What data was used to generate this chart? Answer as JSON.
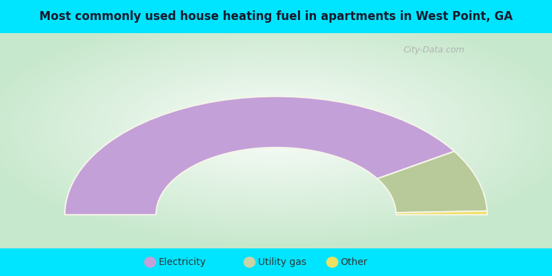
{
  "title": "Most commonly used house heating fuel in apartments in West Point, GA",
  "title_fontsize": 12,
  "title_color": "#1a1a2e",
  "background_color": "#00e5ff",
  "segments": [
    {
      "label": "Electricity",
      "value": 82,
      "color": "#c3a0d8"
    },
    {
      "label": "Utility gas",
      "value": 17,
      "color": "#b8c99a"
    },
    {
      "label": "Other",
      "value": 1,
      "color": "#f0e060"
    }
  ],
  "legend_labels": [
    "Electricity",
    "Utility gas",
    "Other"
  ],
  "legend_colors": [
    "#c3a0d8",
    "#c8d4a8",
    "#f0e060"
  ],
  "watermark": "City-Data.com"
}
